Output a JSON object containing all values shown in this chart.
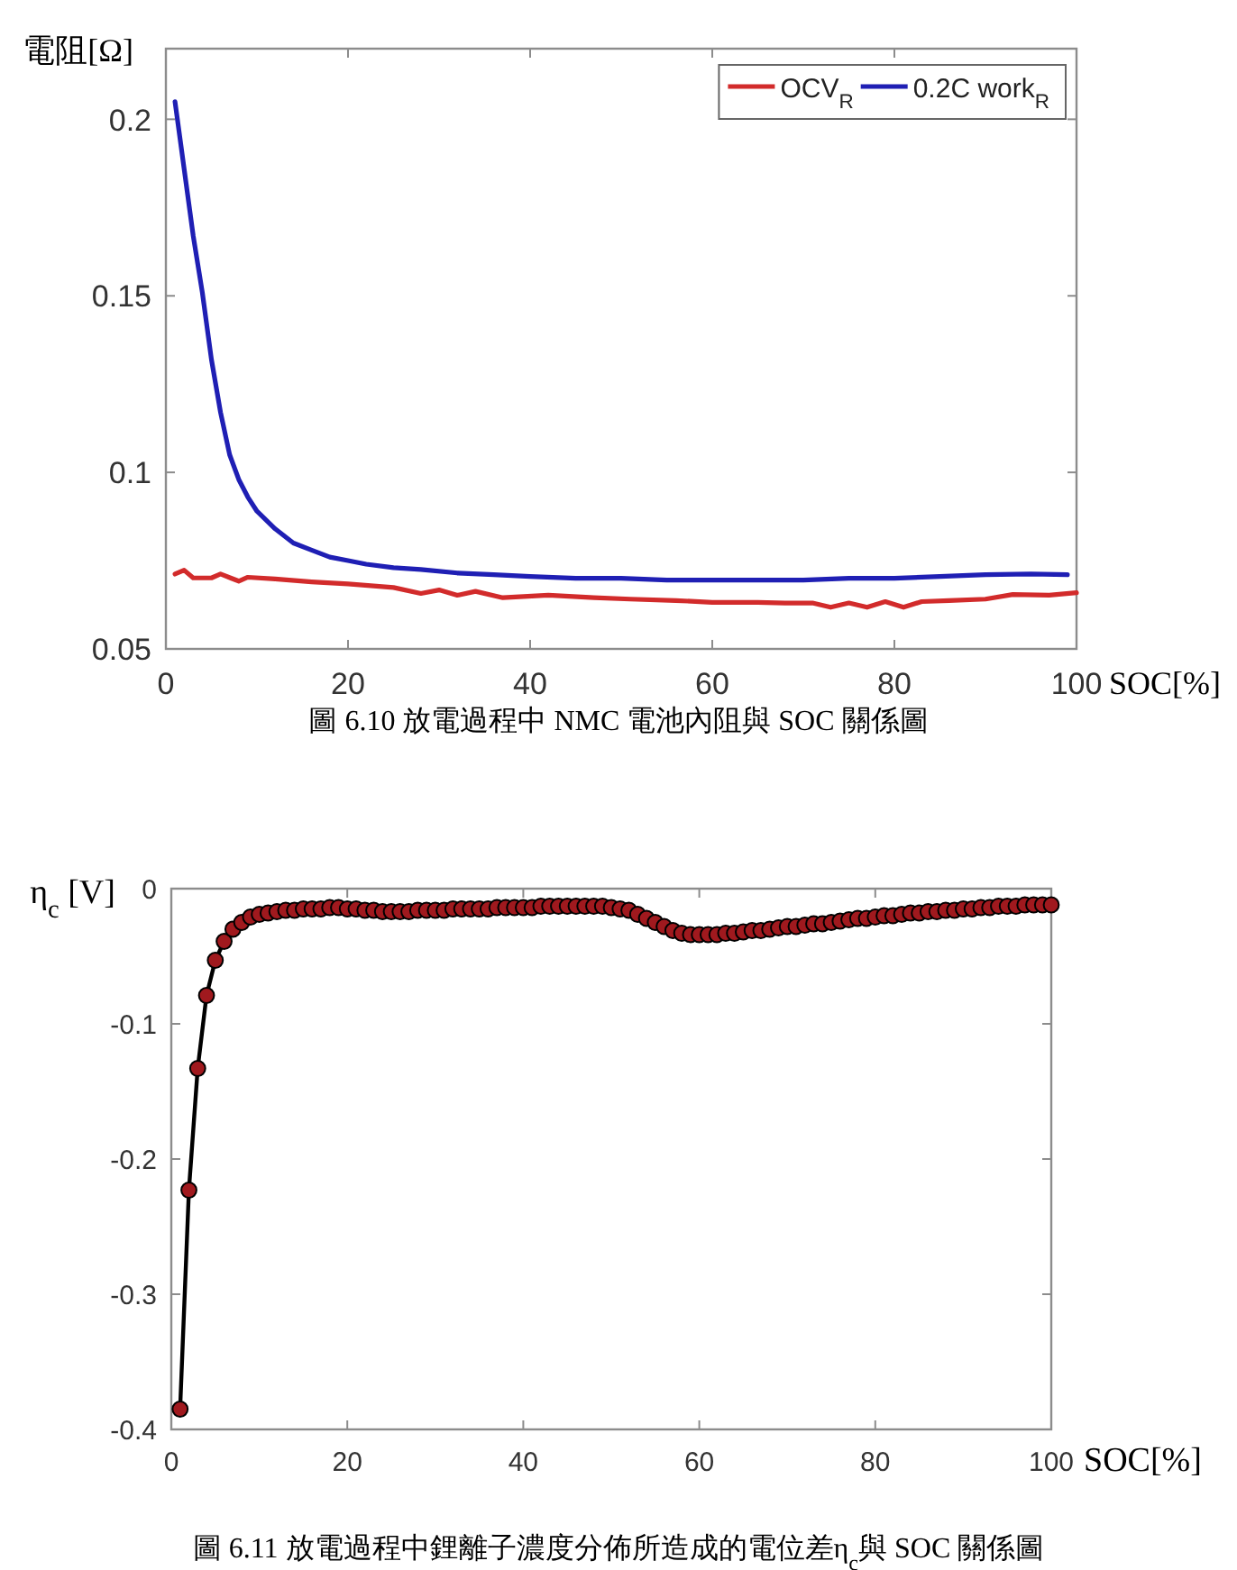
{
  "chart_data": [
    {
      "type": "line",
      "xlabel": "SOC[%]",
      "ylabel": "電阻[Ω]",
      "annotations": [
        "圖 6.10 放電過程中 NMC 電池內阻與 SOC 關係圖"
      ],
      "xlim": [
        0,
        100
      ],
      "xticks": [
        0,
        20,
        40,
        60,
        80,
        100
      ],
      "ylim": [
        0.05,
        0.22
      ],
      "yticks": [
        0.05,
        0.1,
        0.15,
        0.2
      ],
      "legend": "top right",
      "series": [
        {
          "name": "OCV$_{R}$",
          "color": "#d22b2b",
          "x": [
            1,
            2,
            3,
            5,
            6,
            8,
            9,
            12,
            16,
            20,
            25,
            28,
            30,
            32,
            34,
            37,
            42,
            47,
            51,
            56,
            60,
            65,
            68,
            71,
            73,
            75,
            77,
            79,
            81,
            83,
            86,
            90,
            93,
            97,
            100
          ],
          "values": [
            0.0712,
            0.0723,
            0.0701,
            0.0701,
            0.0712,
            0.0692,
            0.0703,
            0.0698,
            0.069,
            0.0684,
            0.0674,
            0.0657,
            0.0667,
            0.0652,
            0.0663,
            0.0645,
            0.0652,
            0.0645,
            0.0641,
            0.0637,
            0.0632,
            0.0632,
            0.063,
            0.063,
            0.0618,
            0.063,
            0.0618,
            0.0634,
            0.0618,
            0.0634,
            0.0637,
            0.0641,
            0.0654,
            0.0652,
            0.0659
          ]
        },
        {
          "name": "0.2C work$_{R}$",
          "color": "#1f1fb4",
          "x": [
            1,
            2,
            3,
            4,
            5,
            6,
            7,
            8,
            9,
            10,
            12,
            14,
            16,
            18,
            20,
            22,
            25,
            28,
            32,
            36,
            40,
            45,
            50,
            55,
            60,
            65,
            70,
            75,
            80,
            85,
            90,
            95,
            99
          ],
          "values": [
            0.205,
            0.186,
            0.167,
            0.151,
            0.132,
            0.117,
            0.105,
            0.098,
            0.093,
            0.089,
            0.084,
            0.08,
            0.078,
            0.076,
            0.075,
            0.074,
            0.073,
            0.0725,
            0.0715,
            0.071,
            0.0705,
            0.07,
            0.07,
            0.0695,
            0.0695,
            0.0695,
            0.0695,
            0.07,
            0.07,
            0.0705,
            0.071,
            0.0712,
            0.071
          ]
        }
      ]
    },
    {
      "type": "line",
      "xlabel": "SOC[%]",
      "ylabel": "η$_{c}$ [V]",
      "annotations": [
        "圖 6.11 放電過程中鋰離子濃度分佈所造成的電位差η$_{c}$與 SOC 關係圖"
      ],
      "xlim": [
        0,
        100
      ],
      "xticks": [
        0,
        20,
        40,
        60,
        80,
        100
      ],
      "ylim": [
        -0.4,
        0
      ],
      "yticks": [
        -0.4,
        -0.3,
        -0.2,
        -0.1,
        0
      ],
      "marker": "circle",
      "x": [
        1,
        2,
        3,
        4,
        5,
        6,
        7,
        8,
        9,
        10,
        11,
        12,
        13,
        14,
        15,
        16,
        17,
        18,
        19,
        20,
        21,
        22,
        23,
        24,
        25,
        26,
        27,
        28,
        29,
        30,
        31,
        32,
        33,
        34,
        35,
        36,
        37,
        38,
        39,
        40,
        41,
        42,
        43,
        44,
        45,
        46,
        47,
        48,
        49,
        50,
        51,
        52,
        53,
        54,
        55,
        56,
        57,
        58,
        59,
        60,
        61,
        62,
        63,
        64,
        65,
        66,
        67,
        68,
        69,
        70,
        71,
        72,
        73,
        74,
        75,
        76,
        77,
        78,
        79,
        80,
        81,
        82,
        83,
        84,
        85,
        86,
        87,
        88,
        89,
        90,
        91,
        92,
        93,
        94,
        95,
        96,
        97,
        98,
        99,
        100
      ],
      "series": [
        {
          "color": "#a0191e",
          "values": [
            -0.385,
            -0.223,
            -0.133,
            -0.079,
            -0.053,
            -0.039,
            -0.03,
            -0.025,
            -0.021,
            -0.019,
            -0.018,
            -0.017,
            -0.016,
            -0.016,
            -0.015,
            -0.015,
            -0.015,
            -0.014,
            -0.014,
            -0.015,
            -0.015,
            -0.016,
            -0.016,
            -0.017,
            -0.017,
            -0.017,
            -0.017,
            -0.016,
            -0.016,
            -0.016,
            -0.016,
            -0.015,
            -0.015,
            -0.015,
            -0.015,
            -0.015,
            -0.014,
            -0.014,
            -0.014,
            -0.014,
            -0.014,
            -0.013,
            -0.013,
            -0.013,
            -0.013,
            -0.013,
            -0.013,
            -0.013,
            -0.013,
            -0.014,
            -0.015,
            -0.016,
            -0.019,
            -0.022,
            -0.025,
            -0.028,
            -0.031,
            -0.033,
            -0.034,
            -0.034,
            -0.034,
            -0.034,
            -0.033,
            -0.033,
            -0.032,
            -0.031,
            -0.031,
            -0.03,
            -0.029,
            -0.028,
            -0.028,
            -0.027,
            -0.026,
            -0.026,
            -0.025,
            -0.024,
            -0.023,
            -0.022,
            -0.022,
            -0.021,
            -0.02,
            -0.02,
            -0.019,
            -0.018,
            -0.018,
            -0.017,
            -0.017,
            -0.016,
            -0.016,
            -0.015,
            -0.015,
            -0.014,
            -0.014,
            -0.013,
            -0.013,
            -0.013,
            -0.012,
            -0.012,
            -0.012,
            -0.012
          ]
        }
      ]
    }
  ]
}
